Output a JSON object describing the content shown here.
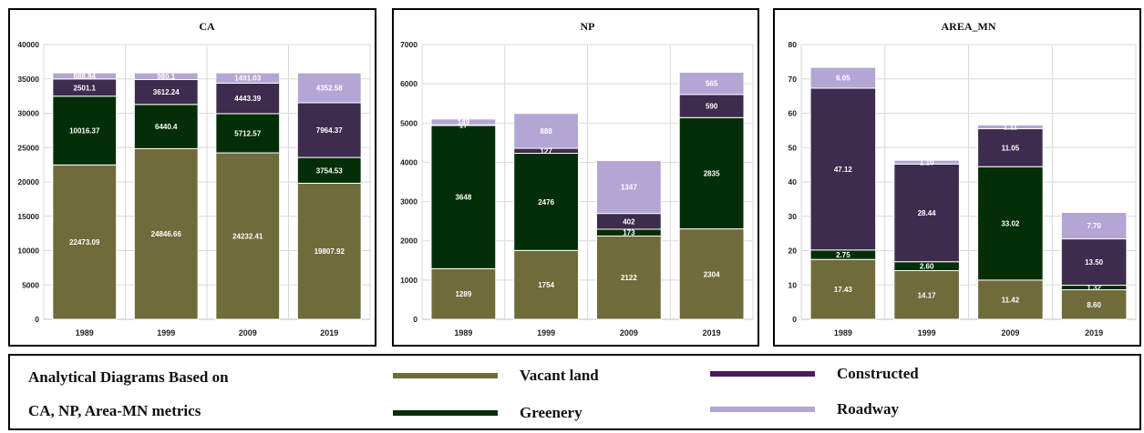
{
  "colors": {
    "Vacant land": "#6f6b3b",
    "Greenery": "#032e08",
    "Constructed": "#3d2c4d",
    "Roadway": "#b3a5d4"
  },
  "legend": {
    "caption_line1": "Analytical Diagrams Based on",
    "caption_line2": "CA, NP, Area-MN metrics",
    "items": [
      {
        "label": "Vacant land",
        "swatch_color": "#6f6b3b"
      },
      {
        "label": "Constructed",
        "swatch_color": "#4d1a5c"
      },
      {
        "label": "Greenery",
        "swatch_color": "#032e08"
      },
      {
        "label": "Roadway",
        "swatch_color": "#b3a5d4"
      }
    ]
  },
  "chart_data": [
    {
      "type": "bar",
      "stacked": true,
      "title": "CA",
      "categories": [
        "1989",
        "1999",
        "2009",
        "2019"
      ],
      "ylim": [
        0,
        40000
      ],
      "yticks": [
        0,
        5000,
        10000,
        15000,
        20000,
        25000,
        30000,
        35000,
        40000
      ],
      "grid": true,
      "series": [
        {
          "name": "Vacant land",
          "values": [
            22473.09,
            24846.66,
            24232.41,
            19807.92
          ],
          "labels": [
            "22473.09",
            "24846.66",
            "24232.41",
            "19807.92"
          ]
        },
        {
          "name": "Greenery",
          "values": [
            10016.37,
            6440.4,
            5712.57,
            3754.53
          ],
          "labels": [
            "10016.37",
            "6440.4",
            "5712.57",
            "3754.53"
          ]
        },
        {
          "name": "Constructed",
          "values": [
            2501.1,
            3612.24,
            4443.39,
            7964.37
          ],
          "labels": [
            "2501.1",
            "3612.24",
            "4443.39",
            "7964.37"
          ]
        },
        {
          "name": "Roadway",
          "values": [
            888.84,
            980.1,
            1491.03,
            4352.58
          ],
          "labels": [
            "888.84",
            "980.1",
            "1491.03",
            "4352.58"
          ]
        }
      ]
    },
    {
      "type": "bar",
      "stacked": true,
      "title": "NP",
      "categories": [
        "1989",
        "1999",
        "2009",
        "2019"
      ],
      "ylim": [
        0,
        7000
      ],
      "yticks": [
        0,
        1000,
        2000,
        3000,
        4000,
        5000,
        6000,
        7000
      ],
      "grid": true,
      "series": [
        {
          "name": "Vacant land",
          "values": [
            1289,
            1754,
            2122,
            2304
          ],
          "labels": [
            "1289",
            "1754",
            "2122",
            "2304"
          ]
        },
        {
          "name": "Greenery",
          "values": [
            3648,
            2476,
            173,
            2835
          ],
          "labels": [
            "3648",
            "2476",
            "173",
            "2835"
          ]
        },
        {
          "name": "Constructed",
          "values": [
            17,
            127,
            402,
            590
          ],
          "labels": [
            "17",
            "127",
            "402",
            "590"
          ]
        },
        {
          "name": "Roadway",
          "values": [
            149,
            888,
            1347,
            565
          ],
          "labels": [
            "149",
            "888",
            "1347",
            "565"
          ]
        }
      ]
    },
    {
      "type": "bar",
      "stacked": true,
      "title": "AREA_MN",
      "categories": [
        "1989",
        "1999",
        "2009",
        "2019"
      ],
      "ylim": [
        0,
        80
      ],
      "yticks": [
        0,
        10,
        20,
        30,
        40,
        50,
        60,
        70,
        80
      ],
      "grid": true,
      "series": [
        {
          "name": "Vacant land",
          "values": [
            17.43,
            14.17,
            11.42,
            8.6
          ],
          "labels": [
            "17.43",
            "14.17",
            "11.42",
            "8.60"
          ]
        },
        {
          "name": "Greenery",
          "values": [
            2.75,
            2.6,
            33.02,
            1.32
          ],
          "labels": [
            "2.75",
            "2.60",
            "33.02",
            "1.32"
          ]
        },
        {
          "name": "Constructed",
          "values": [
            47.12,
            28.44,
            11.05,
            13.5
          ],
          "labels": [
            "47.12",
            "28.44",
            "11.05",
            "13.50"
          ]
        },
        {
          "name": "Roadway",
          "values": [
            6.05,
            1.1,
            1.11,
            7.7
          ],
          "labels": [
            "6.05",
            "1.10",
            "1.11",
            "7.70"
          ]
        }
      ]
    }
  ]
}
